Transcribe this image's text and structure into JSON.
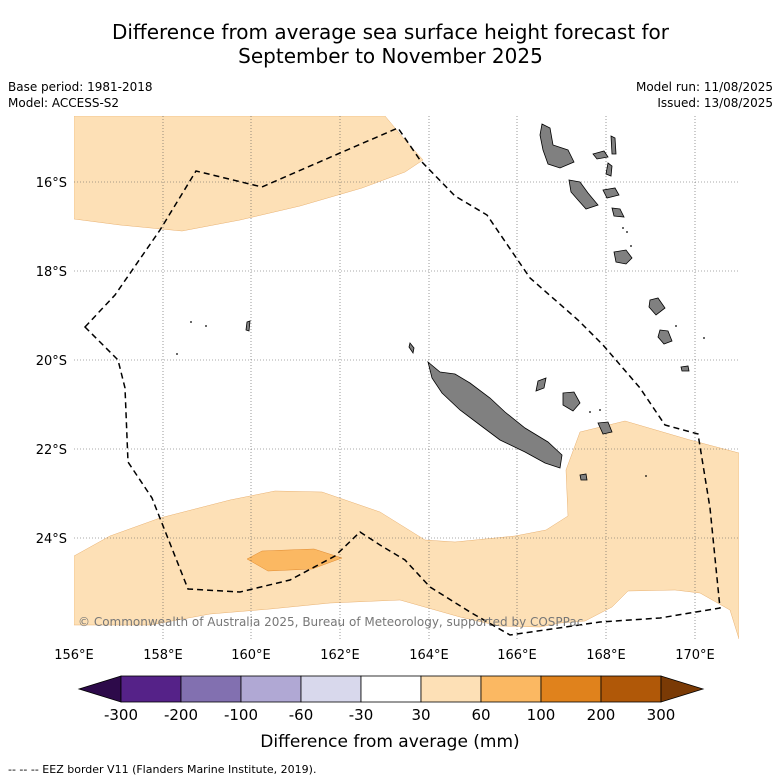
{
  "title_line1": "Difference from average sea surface height forecast for",
  "title_line2": "September to November 2025",
  "meta": {
    "base_period": "Base period: 1981-2018",
    "model": "Model: ACCESS-S2",
    "model_run": "Model run: 11/08/2025",
    "issued": "Issued: 13/08/2025"
  },
  "map": {
    "lat_labels": [
      "16°S",
      "18°S",
      "20°S",
      "22°S",
      "24°S"
    ],
    "lon_labels": [
      "156°E",
      "158°E",
      "160°E",
      "162°E",
      "164°E",
      "166°E",
      "168°E",
      "170°E"
    ],
    "copyright": "© Commonwealth of Australia 2025, Bureau of Meteorology, supported by COSPPac",
    "land_color": "#808080",
    "eez_style": "dashed black"
  },
  "colorbar": {
    "colors": [
      "#2d0a4a",
      "#552288",
      "#8270b0",
      "#b0a8d4",
      "#d8d8ec",
      "#ffffff",
      "#fde0b6",
      "#fbb862",
      "#e0821c",
      "#b05808",
      "#7a3a05"
    ],
    "ticks": [
      "-300",
      "-200",
      "-100",
      "-60",
      "-30",
      "30",
      "60",
      "100",
      "200",
      "300"
    ],
    "label": "Difference from average (mm)"
  },
  "footer": "--  --  -- EEZ border V11 (Flanders Marine Institute, 2019)."
}
